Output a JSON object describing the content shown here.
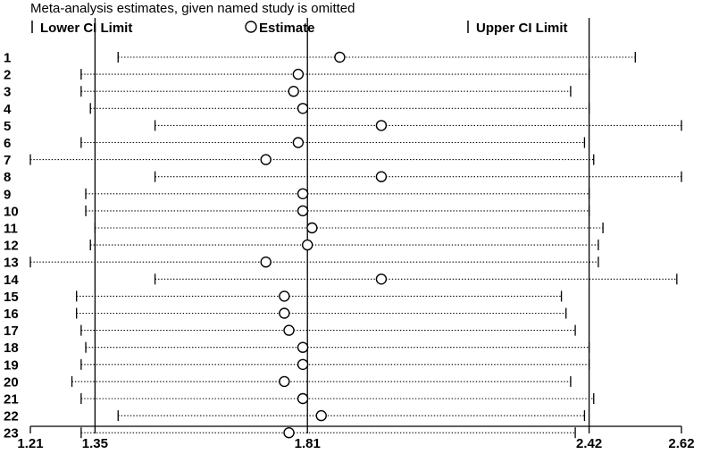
{
  "chart_data": {
    "type": "forest",
    "title": "Meta-analysis estimates, given named study is omitted",
    "legend": {
      "lower": "Lower CI Limit",
      "estimate": "Estimate",
      "upper": "Upper CI Limit"
    },
    "xlim": [
      1.21,
      2.62
    ],
    "x_ticks": [
      1.21,
      1.35,
      1.81,
      2.42,
      2.62
    ],
    "x_tick_labels": [
      "1.21",
      "1.35",
      "1.81",
      "2.42",
      "2.62"
    ],
    "reference_lines": [
      1.35,
      1.81,
      2.42
    ],
    "studies": [
      {
        "label": "1",
        "lower": 1.4,
        "estimate": 1.88,
        "upper": 2.52
      },
      {
        "label": "2",
        "lower": 1.32,
        "estimate": 1.79,
        "upper": 2.42
      },
      {
        "label": "3",
        "lower": 1.32,
        "estimate": 1.78,
        "upper": 2.38
      },
      {
        "label": "4",
        "lower": 1.34,
        "estimate": 1.8,
        "upper": 2.42
      },
      {
        "label": "5",
        "lower": 1.48,
        "estimate": 1.97,
        "upper": 2.62
      },
      {
        "label": "6",
        "lower": 1.32,
        "estimate": 1.79,
        "upper": 2.41
      },
      {
        "label": "7",
        "lower": 1.21,
        "estimate": 1.72,
        "upper": 2.43
      },
      {
        "label": "8",
        "lower": 1.48,
        "estimate": 1.97,
        "upper": 2.62
      },
      {
        "label": "9",
        "lower": 1.33,
        "estimate": 1.8,
        "upper": 2.42
      },
      {
        "label": "10",
        "lower": 1.33,
        "estimate": 1.8,
        "upper": 2.42
      },
      {
        "label": "11",
        "lower": 1.35,
        "estimate": 1.82,
        "upper": 2.45
      },
      {
        "label": "12",
        "lower": 1.34,
        "estimate": 1.81,
        "upper": 2.44
      },
      {
        "label": "13",
        "lower": 1.21,
        "estimate": 1.72,
        "upper": 2.44
      },
      {
        "label": "14",
        "lower": 1.48,
        "estimate": 1.97,
        "upper": 2.61
      },
      {
        "label": "15",
        "lower": 1.31,
        "estimate": 1.76,
        "upper": 2.36
      },
      {
        "label": "16",
        "lower": 1.31,
        "estimate": 1.76,
        "upper": 2.37
      },
      {
        "label": "17",
        "lower": 1.32,
        "estimate": 1.77,
        "upper": 2.39
      },
      {
        "label": "18",
        "lower": 1.33,
        "estimate": 1.8,
        "upper": 2.42
      },
      {
        "label": "19",
        "lower": 1.32,
        "estimate": 1.8,
        "upper": 2.42
      },
      {
        "label": "20",
        "lower": 1.3,
        "estimate": 1.76,
        "upper": 2.38
      },
      {
        "label": "21",
        "lower": 1.32,
        "estimate": 1.8,
        "upper": 2.43
      },
      {
        "label": "22",
        "lower": 1.4,
        "estimate": 1.84,
        "upper": 2.41
      },
      {
        "label": "23",
        "lower": 1.32,
        "estimate": 1.77,
        "upper": 2.39
      }
    ]
  }
}
